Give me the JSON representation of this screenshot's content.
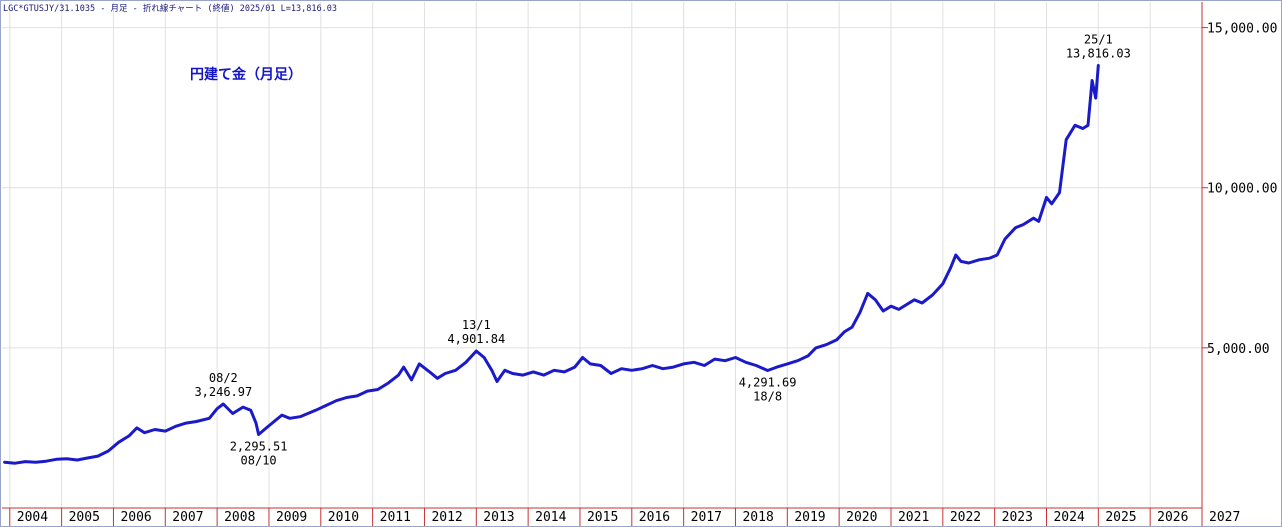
{
  "header": "LGC*GTUSJY/31.1035 - 月足 - 折れ線チャート (終値) 2025/01 L=13,816.03",
  "colors": {
    "line": "#1a1ac8",
    "grid": "#e0e0e0",
    "axis": "#c83232",
    "title": "#1414c8"
  },
  "chart_data": {
    "type": "line",
    "title": "円建て金（月足）",
    "xlabel": "",
    "ylabel": "",
    "x_range": [
      2003.85,
      2027.0
    ],
    "ylim": [
      0,
      15800
    ],
    "x_ticks": [
      "2004",
      "2005",
      "2006",
      "2007",
      "2008",
      "2009",
      "2010",
      "2011",
      "2012",
      "2013",
      "2014",
      "2015",
      "2016",
      "2017",
      "2018",
      "2019",
      "2020",
      "2021",
      "2022",
      "2023",
      "2024",
      "2025",
      "2026",
      "2027"
    ],
    "y_ticks": [
      5000,
      10000,
      15000
    ],
    "y_tick_labels": [
      "5,000.00",
      "10,000.00",
      "15,000.00"
    ],
    "grid": true,
    "series": [
      {
        "name": "",
        "points": [
          [
            2003.9,
            1430
          ],
          [
            2004.1,
            1400
          ],
          [
            2004.3,
            1450
          ],
          [
            2004.5,
            1430
          ],
          [
            2004.7,
            1460
          ],
          [
            2004.9,
            1520
          ],
          [
            2005.1,
            1540
          ],
          [
            2005.3,
            1500
          ],
          [
            2005.5,
            1560
          ],
          [
            2005.7,
            1620
          ],
          [
            2005.9,
            1780
          ],
          [
            2006.1,
            2050
          ],
          [
            2006.3,
            2250
          ],
          [
            2006.45,
            2500
          ],
          [
            2006.6,
            2350
          ],
          [
            2006.8,
            2450
          ],
          [
            2007.0,
            2400
          ],
          [
            2007.2,
            2550
          ],
          [
            2007.4,
            2650
          ],
          [
            2007.6,
            2700
          ],
          [
            2007.85,
            2800
          ],
          [
            2008.0,
            3100
          ],
          [
            2008.12,
            3247
          ],
          [
            2008.3,
            2950
          ],
          [
            2008.5,
            3150
          ],
          [
            2008.65,
            3050
          ],
          [
            2008.75,
            2650
          ],
          [
            2008.8,
            2296
          ],
          [
            2008.95,
            2500
          ],
          [
            2009.1,
            2700
          ],
          [
            2009.25,
            2900
          ],
          [
            2009.4,
            2800
          ],
          [
            2009.6,
            2850
          ],
          [
            2009.9,
            3050
          ],
          [
            2010.1,
            3200
          ],
          [
            2010.3,
            3350
          ],
          [
            2010.5,
            3450
          ],
          [
            2010.7,
            3500
          ],
          [
            2010.9,
            3650
          ],
          [
            2011.1,
            3700
          ],
          [
            2011.3,
            3900
          ],
          [
            2011.5,
            4150
          ],
          [
            2011.6,
            4400
          ],
          [
            2011.75,
            4000
          ],
          [
            2011.9,
            4500
          ],
          [
            2012.1,
            4250
          ],
          [
            2012.25,
            4050
          ],
          [
            2012.4,
            4200
          ],
          [
            2012.6,
            4300
          ],
          [
            2012.8,
            4550
          ],
          [
            2013.0,
            4902
          ],
          [
            2013.15,
            4700
          ],
          [
            2013.3,
            4300
          ],
          [
            2013.4,
            3950
          ],
          [
            2013.55,
            4300
          ],
          [
            2013.7,
            4200
          ],
          [
            2013.9,
            4150
          ],
          [
            2014.1,
            4250
          ],
          [
            2014.3,
            4150
          ],
          [
            2014.5,
            4300
          ],
          [
            2014.7,
            4250
          ],
          [
            2014.9,
            4400
          ],
          [
            2015.05,
            4700
          ],
          [
            2015.2,
            4500
          ],
          [
            2015.4,
            4450
          ],
          [
            2015.6,
            4200
          ],
          [
            2015.8,
            4350
          ],
          [
            2016.0,
            4300
          ],
          [
            2016.2,
            4350
          ],
          [
            2016.4,
            4450
          ],
          [
            2016.6,
            4350
          ],
          [
            2016.8,
            4400
          ],
          [
            2017.0,
            4500
          ],
          [
            2017.2,
            4550
          ],
          [
            2017.4,
            4450
          ],
          [
            2017.6,
            4650
          ],
          [
            2017.8,
            4600
          ],
          [
            2018.0,
            4700
          ],
          [
            2018.2,
            4550
          ],
          [
            2018.4,
            4450
          ],
          [
            2018.62,
            4292
          ],
          [
            2018.8,
            4400
          ],
          [
            2019.0,
            4500
          ],
          [
            2019.2,
            4600
          ],
          [
            2019.4,
            4750
          ],
          [
            2019.55,
            5000
          ],
          [
            2019.75,
            5100
          ],
          [
            2019.95,
            5250
          ],
          [
            2020.1,
            5500
          ],
          [
            2020.25,
            5650
          ],
          [
            2020.4,
            6100
          ],
          [
            2020.55,
            6700
          ],
          [
            2020.7,
            6500
          ],
          [
            2020.85,
            6150
          ],
          [
            2021.0,
            6300
          ],
          [
            2021.15,
            6200
          ],
          [
            2021.3,
            6350
          ],
          [
            2021.45,
            6500
          ],
          [
            2021.6,
            6400
          ],
          [
            2021.8,
            6650
          ],
          [
            2022.0,
            7000
          ],
          [
            2022.15,
            7500
          ],
          [
            2022.25,
            7900
          ],
          [
            2022.35,
            7700
          ],
          [
            2022.5,
            7650
          ],
          [
            2022.7,
            7750
          ],
          [
            2022.9,
            7800
          ],
          [
            2023.05,
            7900
          ],
          [
            2023.2,
            8400
          ],
          [
            2023.4,
            8750
          ],
          [
            2023.55,
            8850
          ],
          [
            2023.75,
            9050
          ],
          [
            2023.85,
            8950
          ],
          [
            2024.0,
            9700
          ],
          [
            2024.1,
            9500
          ],
          [
            2024.25,
            9850
          ],
          [
            2024.38,
            11500
          ],
          [
            2024.55,
            11950
          ],
          [
            2024.7,
            11850
          ],
          [
            2024.8,
            11950
          ],
          [
            2024.88,
            13350
          ],
          [
            2024.95,
            12800
          ],
          [
            2025.0,
            13816
          ]
        ]
      }
    ],
    "annotations": [
      {
        "label": "08/2",
        "value": "3,246.97",
        "x": 2008.12,
        "y": 3247,
        "position": "above"
      },
      {
        "label": "08/10",
        "value": "2,295.51",
        "x": 2008.8,
        "y": 2296,
        "position": "below"
      },
      {
        "label": "13/1",
        "value": "4,901.84",
        "x": 2013.0,
        "y": 4902,
        "position": "above"
      },
      {
        "label": "18/8",
        "value": "4,291.69",
        "x": 2018.62,
        "y": 4292,
        "position": "below"
      },
      {
        "label": "25/1",
        "value": "13,816.03",
        "x": 2025.0,
        "y": 13816,
        "position": "above"
      }
    ]
  }
}
